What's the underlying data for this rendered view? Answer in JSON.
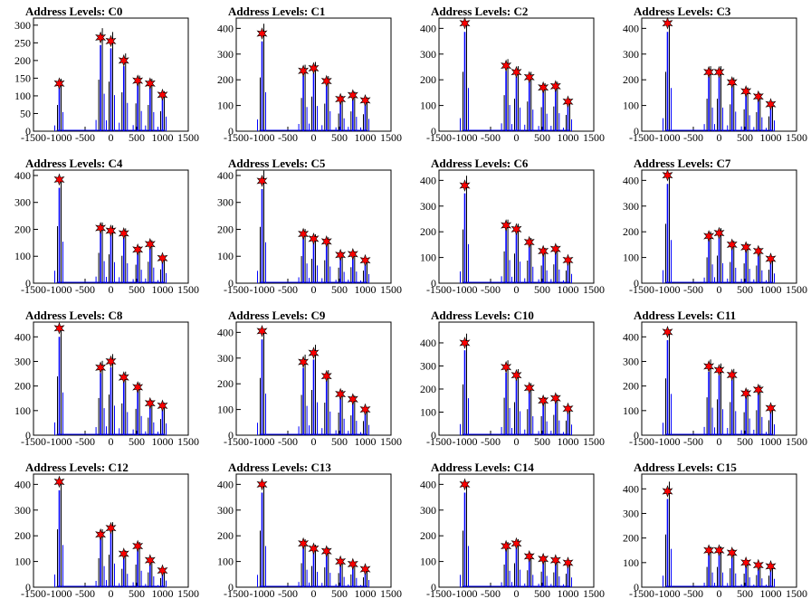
{
  "chart_data": [
    {
      "type": "line",
      "title": "Address Levels: C0",
      "xlim": [
        -1500,
        1500
      ],
      "ylim": [
        0,
        320
      ],
      "yticks": [
        0,
        50,
        100,
        150,
        200,
        250,
        300
      ],
      "xticks": [
        -1500,
        -1000,
        -500,
        0,
        500,
        1000,
        1500
      ],
      "peaks_x": [
        -1000,
        -200,
        0,
        250,
        520,
        760,
        1000
      ],
      "peaks_y": [
        135,
        265,
        255,
        200,
        143,
        135,
        103
      ]
    },
    {
      "type": "line",
      "title": "Address Levels: C1",
      "xlim": [
        -1500,
        1500
      ],
      "ylim": [
        0,
        440
      ],
      "yticks": [
        0,
        100,
        200,
        300,
        400
      ],
      "xticks": [
        -1500,
        -1000,
        -500,
        0,
        500,
        1000,
        1500
      ],
      "peaks_x": [
        -1000,
        -200,
        0,
        250,
        520,
        760,
        1000
      ],
      "peaks_y": [
        380,
        235,
        245,
        195,
        125,
        140,
        120
      ]
    },
    {
      "type": "line",
      "title": "Address Levels: C2",
      "xlim": [
        -1500,
        1500
      ],
      "ylim": [
        0,
        440
      ],
      "yticks": [
        0,
        100,
        200,
        300,
        400
      ],
      "xticks": [
        -1500,
        -1000,
        -500,
        0,
        500,
        1000,
        1500
      ],
      "peaks_x": [
        -1000,
        -200,
        0,
        250,
        520,
        760,
        1000
      ],
      "peaks_y": [
        420,
        255,
        230,
        210,
        170,
        175,
        115
      ]
    },
    {
      "type": "line",
      "title": "Address Levels: C3",
      "xlim": [
        -1500,
        1500
      ],
      "ylim": [
        0,
        440
      ],
      "yticks": [
        0,
        100,
        200,
        300,
        400
      ],
      "xticks": [
        -1500,
        -1000,
        -500,
        0,
        500,
        1000,
        1500
      ],
      "peaks_x": [
        -1000,
        -200,
        0,
        250,
        520,
        760,
        1000
      ],
      "peaks_y": [
        420,
        230,
        230,
        190,
        155,
        135,
        105
      ]
    },
    {
      "type": "line",
      "title": "Address Levels: C4",
      "xlim": [
        -1500,
        1500
      ],
      "ylim": [
        0,
        420
      ],
      "yticks": [
        0,
        100,
        200,
        300,
        400
      ],
      "xticks": [
        -1500,
        -1000,
        -500,
        0,
        500,
        1000,
        1500
      ],
      "peaks_x": [
        -1000,
        -200,
        0,
        250,
        520,
        760,
        1000
      ],
      "peaks_y": [
        385,
        205,
        195,
        185,
        125,
        145,
        93
      ]
    },
    {
      "type": "line",
      "title": "Address Levels: C5",
      "xlim": [
        -1500,
        1500
      ],
      "ylim": [
        0,
        420
      ],
      "yticks": [
        0,
        100,
        200,
        300,
        400
      ],
      "xticks": [
        -1500,
        -1000,
        -500,
        0,
        500,
        1000,
        1500
      ],
      "peaks_x": [
        -1000,
        -200,
        0,
        250,
        520,
        760,
        1000
      ],
      "peaks_y": [
        380,
        183,
        165,
        155,
        105,
        108,
        85
      ]
    },
    {
      "type": "line",
      "title": "Address Levels: C6",
      "xlim": [
        -1500,
        1500
      ],
      "ylim": [
        0,
        440
      ],
      "yticks": [
        0,
        100,
        200,
        300,
        400
      ],
      "xticks": [
        -1500,
        -1000,
        -500,
        0,
        500,
        1000,
        1500
      ],
      "peaks_x": [
        -1000,
        -200,
        0,
        250,
        520,
        760,
        1000
      ],
      "peaks_y": [
        380,
        225,
        210,
        160,
        125,
        133,
        90
      ]
    },
    {
      "type": "line",
      "title": "Address Levels: C7",
      "xlim": [
        -1500,
        1500
      ],
      "ylim": [
        0,
        440
      ],
      "yticks": [
        0,
        100,
        200,
        300,
        400
      ],
      "xticks": [
        -1500,
        -1000,
        -500,
        0,
        500,
        1000,
        1500
      ],
      "peaks_x": [
        -1000,
        -200,
        0,
        250,
        520,
        760,
        1000
      ],
      "peaks_y": [
        420,
        183,
        195,
        150,
        140,
        125,
        95
      ]
    },
    {
      "type": "line",
      "title": "Address Levels: C8",
      "xlim": [
        -1500,
        1500
      ],
      "ylim": [
        0,
        460
      ],
      "yticks": [
        0,
        100,
        200,
        300,
        400
      ],
      "xticks": [
        -1500,
        -1000,
        -500,
        0,
        500,
        1000,
        1500
      ],
      "peaks_x": [
        -1000,
        -200,
        0,
        250,
        520,
        760,
        1000
      ],
      "peaks_y": [
        435,
        275,
        300,
        235,
        195,
        130,
        120
      ]
    },
    {
      "type": "line",
      "title": "Address Levels: C9",
      "xlim": [
        -1500,
        1500
      ],
      "ylim": [
        0,
        440
      ],
      "yticks": [
        0,
        100,
        200,
        300,
        400
      ],
      "xticks": [
        -1500,
        -1000,
        -500,
        0,
        500,
        1000,
        1500
      ],
      "peaks_x": [
        -1000,
        -200,
        0,
        250,
        520,
        760,
        1000
      ],
      "peaks_y": [
        405,
        285,
        320,
        230,
        160,
        140,
        100
      ]
    },
    {
      "type": "line",
      "title": "Address Levels: C10",
      "xlim": [
        -1500,
        1500
      ],
      "ylim": [
        0,
        490
      ],
      "yticks": [
        0,
        100,
        200,
        300,
        400
      ],
      "xticks": [
        -1500,
        -1000,
        -500,
        0,
        500,
        1000,
        1500
      ],
      "peaks_x": [
        -1000,
        -200,
        0,
        250,
        520,
        760,
        1000
      ],
      "peaks_y": [
        400,
        295,
        260,
        205,
        150,
        160,
        115
      ]
    },
    {
      "type": "line",
      "title": "Address Levels: C11",
      "xlim": [
        -1500,
        1500
      ],
      "ylim": [
        0,
        460
      ],
      "yticks": [
        0,
        100,
        200,
        300,
        400
      ],
      "xticks": [
        -1500,
        -1000,
        -500,
        0,
        500,
        1000,
        1500
      ],
      "peaks_x": [
        -1000,
        -200,
        0,
        250,
        520,
        760,
        1000
      ],
      "peaks_y": [
        420,
        280,
        265,
        245,
        170,
        185,
        110
      ]
    },
    {
      "type": "line",
      "title": "Address Levels: C12",
      "xlim": [
        -1500,
        1500
      ],
      "ylim": [
        0,
        440
      ],
      "yticks": [
        0,
        100,
        200,
        300,
        400
      ],
      "xticks": [
        -1500,
        -1000,
        -500,
        0,
        500,
        1000,
        1500
      ],
      "peaks_x": [
        -1000,
        -200,
        0,
        250,
        520,
        760,
        1000
      ],
      "peaks_y": [
        410,
        205,
        230,
        130,
        160,
        105,
        65
      ]
    },
    {
      "type": "line",
      "title": "Address Levels: C13",
      "xlim": [
        -1500,
        1500
      ],
      "ylim": [
        0,
        440
      ],
      "yticks": [
        0,
        100,
        200,
        300,
        400
      ],
      "xticks": [
        -1500,
        -1000,
        -500,
        0,
        500,
        1000,
        1500
      ],
      "peaks_x": [
        -1000,
        -200,
        0,
        250,
        520,
        760,
        1000
      ],
      "peaks_y": [
        400,
        170,
        150,
        140,
        100,
        90,
        70
      ]
    },
    {
      "type": "line",
      "title": "Address Levels: C14",
      "xlim": [
        -1500,
        1500
      ],
      "ylim": [
        0,
        440
      ],
      "yticks": [
        0,
        100,
        200,
        300,
        400
      ],
      "xticks": [
        -1500,
        -1000,
        -500,
        0,
        500,
        1000,
        1500
      ],
      "peaks_x": [
        -1000,
        -200,
        0,
        250,
        520,
        760,
        1000
      ],
      "peaks_y": [
        400,
        160,
        170,
        120,
        110,
        105,
        95
      ]
    },
    {
      "type": "line",
      "title": "Address Levels: C15",
      "xlim": [
        -1500,
        1500
      ],
      "ylim": [
        0,
        460
      ],
      "yticks": [
        0,
        100,
        200,
        300,
        400
      ],
      "xticks": [
        -1500,
        -1000,
        -500,
        0,
        500,
        1000,
        1500
      ],
      "peaks_x": [
        -1000,
        -200,
        0,
        250,
        520,
        760,
        1000
      ],
      "peaks_y": [
        390,
        150,
        150,
        140,
        100,
        90,
        85
      ]
    }
  ],
  "colors": {
    "line": "#0000ff",
    "marker": "#ff0000",
    "marker_edge": "#000000",
    "axis": "#000000",
    "background": "#ffffff"
  }
}
